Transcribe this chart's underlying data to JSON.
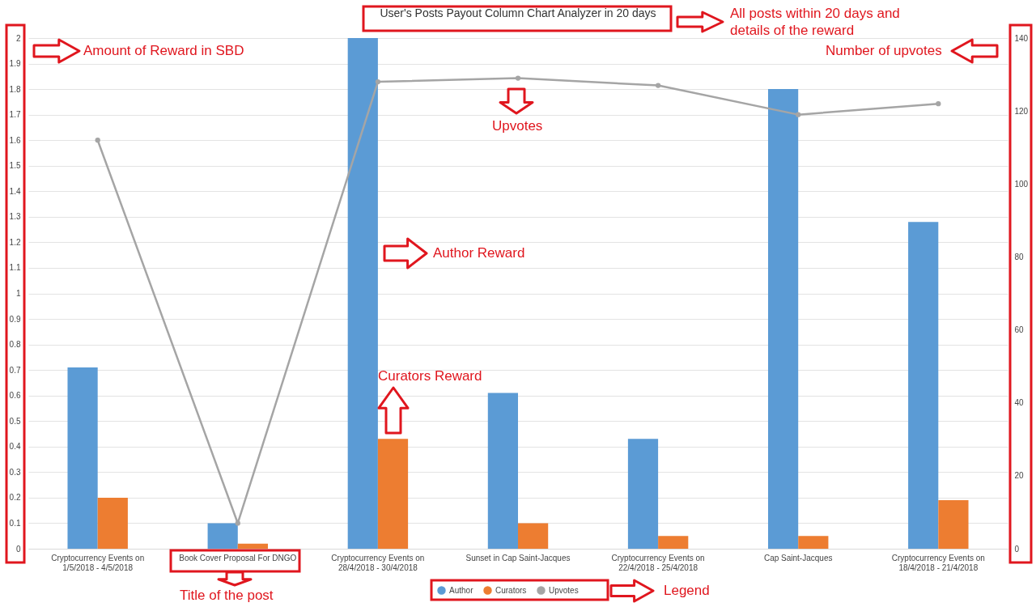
{
  "chart_data": {
    "type": "bar",
    "title": "User's Posts Payout Column Chart Analyzer in 20 days",
    "categories": [
      "Cryptocurrency Events on 1/5/2018 - 4/5/2018",
      "Book Cover Proposal For DNGO",
      "Cryptocurrency Events on 28/4/2018 - 30/4/2018",
      "Sunset in Cap Saint-Jacques",
      "Cryptocurrency Events on 22/4/2018 - 25/4/2018",
      "Cap Saint-Jacques",
      "Cryptocurrency Events on 18/4/2018 - 21/4/2018"
    ],
    "series": [
      {
        "name": "Author",
        "color": "#5b9bd5",
        "values": [
          0.71,
          0.1,
          2.0,
          0.61,
          0.43,
          1.8,
          1.28
        ]
      },
      {
        "name": "Curators",
        "color": "#ed7d31",
        "values": [
          0.2,
          0.02,
          0.43,
          0.1,
          0.05,
          0.05,
          0.19
        ]
      },
      {
        "name": "Upvotes",
        "type": "line",
        "axis": "y2",
        "color": "#a5a5a5",
        "values": [
          112,
          7,
          128,
          129,
          127,
          119,
          122
        ]
      }
    ],
    "ylim": [
      0,
      2
    ],
    "yticks": [
      0,
      0.1,
      0.2,
      0.3,
      0.4,
      0.5,
      0.6,
      0.7,
      0.8,
      0.9,
      1,
      1.1,
      1.2,
      1.3,
      1.4,
      1.5,
      1.6,
      1.7,
      1.8,
      1.9,
      2
    ],
    "y2lim": [
      0,
      140
    ],
    "y2ticks": [
      0,
      20,
      40,
      60,
      80,
      100,
      120,
      140
    ],
    "grid": "y",
    "legend": "bottom",
    "marker": "circle",
    "annotations": [
      "All posts within 20 days and details of the reward",
      "Amount of Reward in SBD",
      "Number of upvotes",
      "Upvotes",
      "Author Reward",
      "Curators Reward",
      "Title of the post",
      "Legend"
    ]
  }
}
